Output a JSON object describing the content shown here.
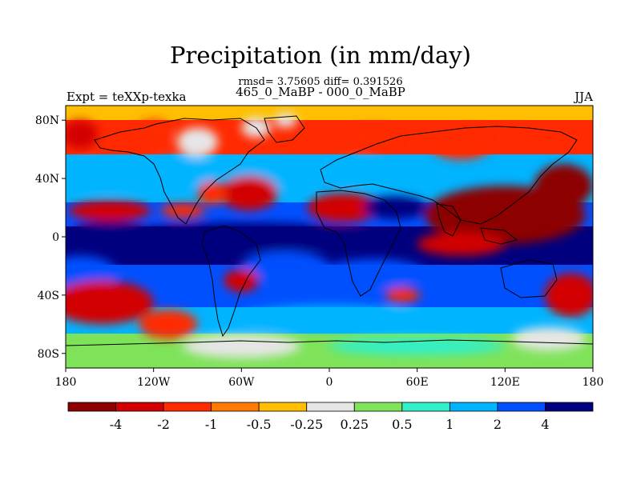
{
  "title": "Precipitation (in mm/day)",
  "stats": "rmsd= 3.75605 diff= 0.391526",
  "difference": "465_0_MaBP - 000_0_MaBP",
  "experiment": "Expt = teXXp-texka",
  "season": "JJA",
  "lat_labels": [
    "80N",
    "40N",
    "0",
    "40S",
    "80S"
  ],
  "lon_labels": [
    "180",
    "120W",
    "60W",
    "0",
    "60E",
    "120E",
    "180"
  ],
  "colorbar": {
    "colors": [
      "#8c0000",
      "#d20000",
      "#ff2a00",
      "#ff7a00",
      "#ffbf00",
      "#e6e6e6",
      "#7fe35a",
      "#33f0c8",
      "#00b4ff",
      "#0050ff",
      "#00007f"
    ],
    "labels": [
      "-4",
      "-2",
      "-1",
      "-0.5",
      "-0.25",
      "0.25",
      "0.5",
      "1",
      "2",
      "4"
    ]
  },
  "map_blobs": [
    {
      "lon": -170,
      "lat": 70,
      "rx": 12,
      "ry": 10,
      "level": 1
    },
    {
      "lon": -120,
      "lat": 72,
      "rx": 12,
      "ry": 8,
      "level": 2
    },
    {
      "lon": -90,
      "lat": 65,
      "rx": 14,
      "ry": 10,
      "level": 5
    },
    {
      "lon": -50,
      "lat": 75,
      "rx": 10,
      "ry": 7,
      "level": 5
    },
    {
      "lon": -30,
      "lat": 80,
      "rx": 8,
      "ry": 5,
      "level": 5
    },
    {
      "lon": 30,
      "lat": 68,
      "rx": 18,
      "ry": 8,
      "level": 2
    },
    {
      "lon": 90,
      "lat": 62,
      "rx": 20,
      "ry": 9,
      "level": 2
    },
    {
      "lon": -150,
      "lat": 42,
      "rx": 35,
      "ry": 10,
      "level": 8
    },
    {
      "lon": -100,
      "lat": 45,
      "rx": 25,
      "ry": 10,
      "level": 8
    },
    {
      "lon": -40,
      "lat": 42,
      "rx": 30,
      "ry": 10,
      "level": 8
    },
    {
      "lon": 20,
      "lat": 45,
      "rx": 20,
      "ry": 8,
      "level": 8
    },
    {
      "lon": -55,
      "lat": 30,
      "rx": 20,
      "ry": 12,
      "level": 1
    },
    {
      "lon": -80,
      "lat": 30,
      "rx": 10,
      "ry": 8,
      "level": 2
    },
    {
      "lon": -150,
      "lat": 18,
      "rx": 28,
      "ry": 7,
      "level": 1
    },
    {
      "lon": -100,
      "lat": 18,
      "rx": 15,
      "ry": 5,
      "level": 2
    },
    {
      "lon": 10,
      "lat": 20,
      "rx": 25,
      "ry": 10,
      "level": 1
    },
    {
      "lon": 45,
      "lat": 20,
      "rx": 22,
      "ry": 8,
      "level": 10
    },
    {
      "lon": -150,
      "lat": 5,
      "rx": 25,
      "ry": 6,
      "level": 10
    },
    {
      "lon": -60,
      "lat": 0,
      "rx": 90,
      "ry": 10,
      "level": 10
    },
    {
      "lon": 120,
      "lat": 15,
      "rx": 55,
      "ry": 20,
      "level": 0
    },
    {
      "lon": 160,
      "lat": 35,
      "rx": 20,
      "ry": 15,
      "level": 0
    },
    {
      "lon": 90,
      "lat": -5,
      "rx": 30,
      "ry": 8,
      "level": 1
    },
    {
      "lon": -170,
      "lat": -25,
      "rx": 25,
      "ry": 12,
      "level": 9
    },
    {
      "lon": -30,
      "lat": -20,
      "rx": 30,
      "ry": 10,
      "level": 9
    },
    {
      "lon": 30,
      "lat": -25,
      "rx": 35,
      "ry": 10,
      "level": 9
    },
    {
      "lon": -155,
      "lat": -45,
      "rx": 35,
      "ry": 15,
      "level": 1
    },
    {
      "lon": -110,
      "lat": -60,
      "rx": 20,
      "ry": 10,
      "level": 2
    },
    {
      "lon": 165,
      "lat": -40,
      "rx": 18,
      "ry": 15,
      "level": 1
    },
    {
      "lon": -60,
      "lat": -30,
      "rx": 12,
      "ry": 8,
      "level": 1
    },
    {
      "lon": 50,
      "lat": -40,
      "rx": 12,
      "ry": 5,
      "level": 2
    },
    {
      "lon": 0,
      "lat": -55,
      "rx": 60,
      "ry": 8,
      "level": 8
    },
    {
      "lon": -60,
      "lat": -75,
      "rx": 40,
      "ry": 8,
      "level": 5
    },
    {
      "lon": 60,
      "lat": -75,
      "rx": 60,
      "ry": 6,
      "level": 7
    },
    {
      "lon": 150,
      "lat": -70,
      "rx": 25,
      "ry": 8,
      "level": 5
    }
  ]
}
